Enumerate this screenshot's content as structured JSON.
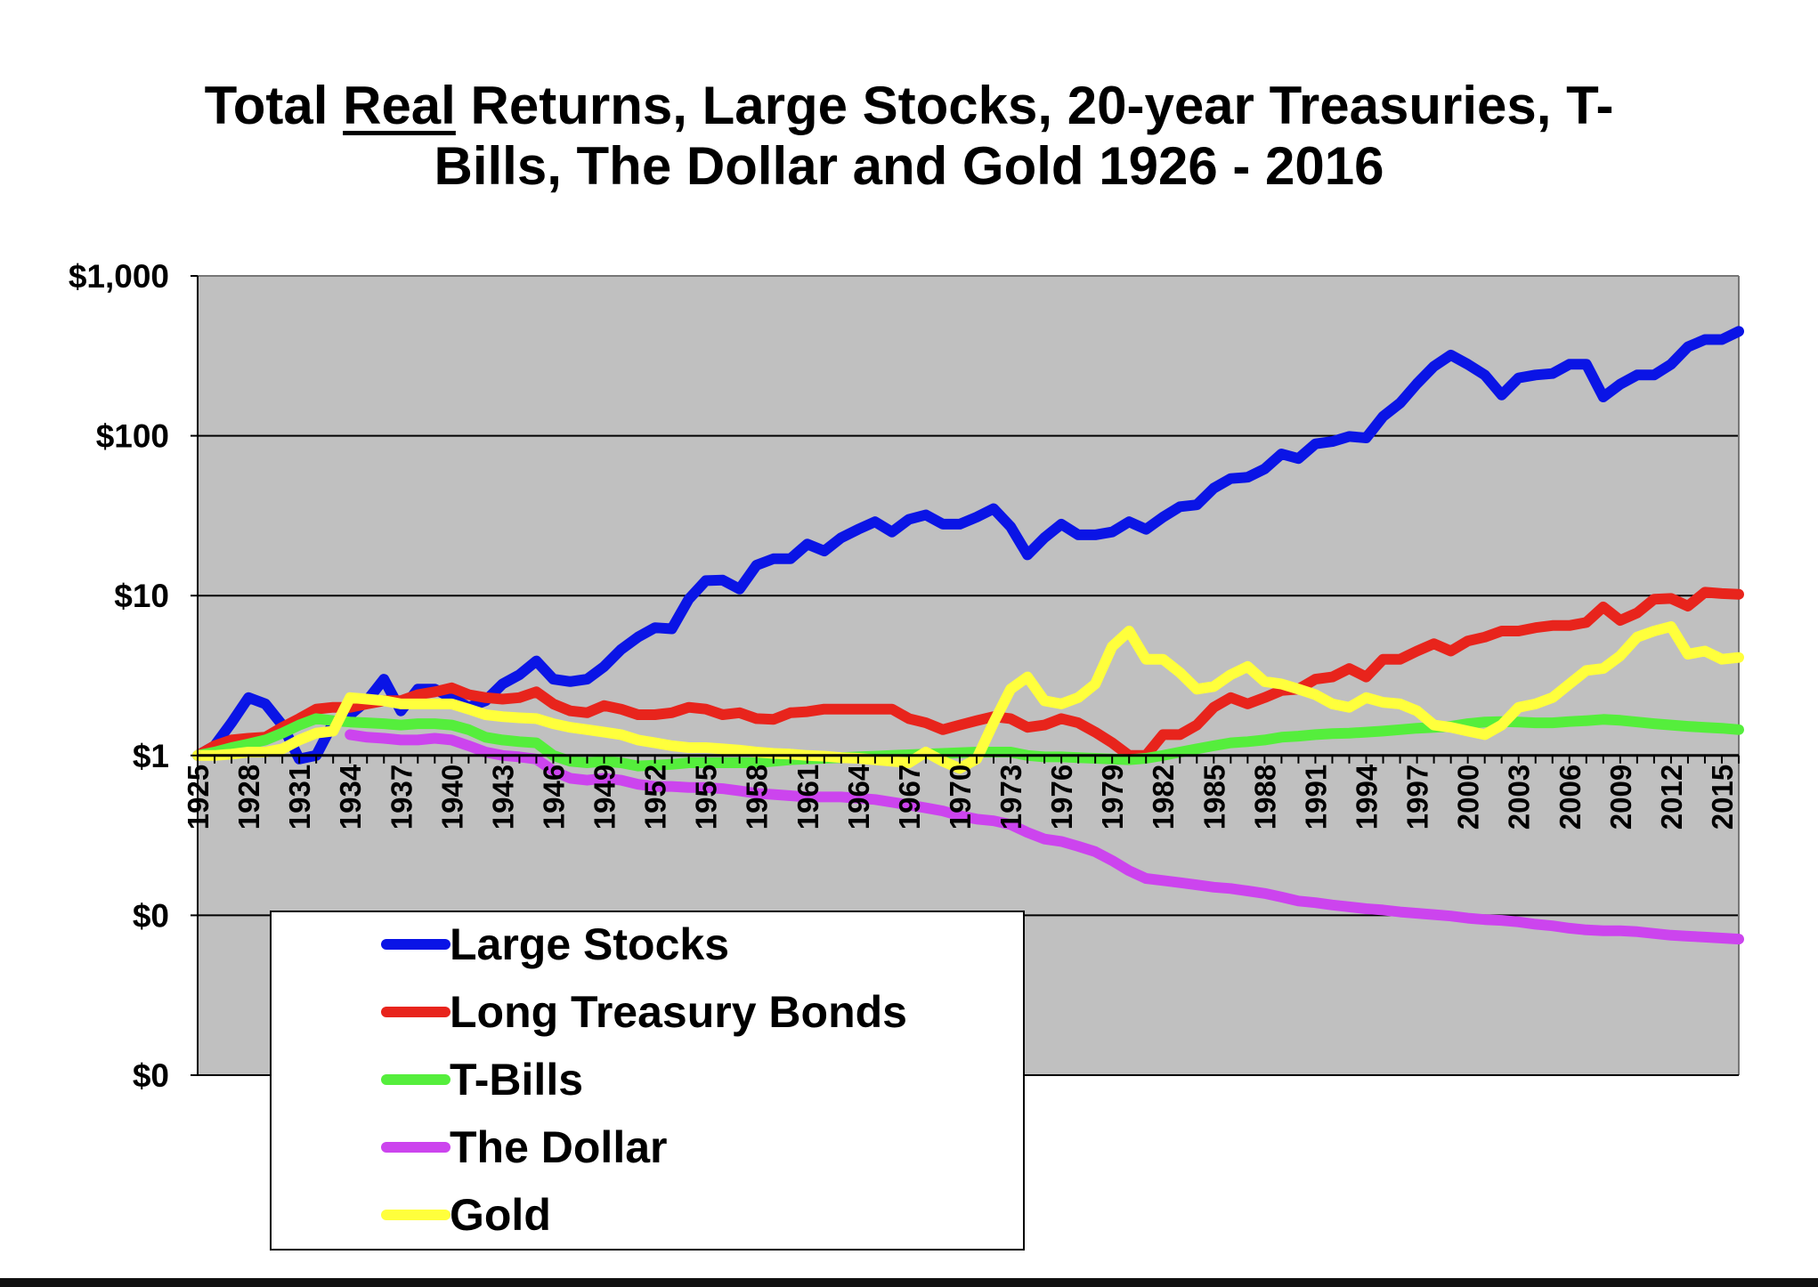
{
  "chart_data": {
    "type": "line",
    "title_parts": [
      "Total ",
      "Real",
      " Returns, Large Stocks, 20-year Treasuries, T-",
      "Bills, The Dollar and Gold 1926 - 2016"
    ],
    "y_scale": "log",
    "ylim": [
      0.01,
      1000
    ],
    "y_ticks": [
      1000,
      100,
      10,
      1,
      0.1,
      0.01
    ],
    "y_tick_labels": [
      "$1,000",
      "$100",
      "$10",
      "$1",
      "$0",
      "$0"
    ],
    "xlim": [
      1925,
      2016
    ],
    "x_tick_labels": [
      "1925",
      "1928",
      "1931",
      "1934",
      "1937",
      "1940",
      "1943",
      "1946",
      "1949",
      "1952",
      "1955",
      "1958",
      "1961",
      "1964",
      "1967",
      "1970",
      "1973",
      "1976",
      "1979",
      "1982",
      "1985",
      "1988",
      "1991",
      "1994",
      "1997",
      "2000",
      "2003",
      "2006",
      "2009",
      "2012",
      "2015"
    ],
    "grid": true,
    "plot_background": "#c0c0c0",
    "legend_position": "lower-left",
    "series": [
      {
        "name": "Large Stocks",
        "color": "#0a14e6",
        "x": [
          1925,
          1926,
          1927,
          1928,
          1929,
          1930,
          1931,
          1932,
          1933,
          1934,
          1935,
          1936,
          1937,
          1938,
          1939,
          1940,
          1941,
          1942,
          1943,
          1944,
          1945,
          1946,
          1947,
          1948,
          1949,
          1950,
          1951,
          1952,
          1953,
          1954,
          1955,
          1956,
          1957,
          1958,
          1959,
          1960,
          1961,
          1962,
          1963,
          1964,
          1965,
          1966,
          1967,
          1968,
          1969,
          1970,
          1971,
          1972,
          1973,
          1974,
          1975,
          1976,
          1977,
          1978,
          1979,
          1980,
          1981,
          1982,
          1983,
          1984,
          1985,
          1986,
          1987,
          1988,
          1989,
          1990,
          1991,
          1992,
          1993,
          1994,
          1995,
          1996,
          1997,
          1998,
          1999,
          2000,
          2001,
          2002,
          2003,
          2004,
          2005,
          2006,
          2007,
          2008,
          2009,
          2010,
          2011,
          2012,
          2013,
          2014,
          2015,
          2016
        ],
        "y": [
          1.0,
          1.15,
          1.6,
          2.3,
          2.1,
          1.55,
          0.95,
          1.0,
          1.6,
          1.8,
          2.2,
          3.0,
          1.9,
          2.6,
          2.6,
          2.3,
          2.0,
          2.2,
          2.8,
          3.2,
          3.9,
          3.0,
          2.9,
          3.0,
          3.6,
          4.6,
          5.5,
          6.3,
          6.2,
          9.5,
          12.4,
          12.5,
          11.0,
          15.5,
          17.0,
          17.0,
          21.0,
          19.0,
          23.0,
          26.0,
          29.0,
          25.0,
          30.0,
          32.0,
          28.0,
          28.0,
          31.0,
          35.0,
          27.0,
          18.0,
          23.0,
          28.0,
          24.0,
          24.0,
          25.0,
          29.0,
          26.0,
          31.0,
          36.0,
          37.0,
          47.0,
          54.0,
          55.0,
          62.0,
          77.0,
          72.0,
          89.0,
          92.0,
          99.0,
          97.0,
          132.0,
          160.0,
          212.0,
          272.0,
          320.0,
          280.0,
          240.0,
          180.0,
          230.0,
          240.0,
          245.0,
          280.0,
          280.0,
          175.0,
          210.0,
          240.0,
          240.0,
          280.0,
          360.0,
          400.0,
          400.0,
          450.0
        ]
      },
      {
        "name": "Long Treasury Bonds",
        "color": "#e8241c",
        "x": [
          1925,
          1926,
          1927,
          1928,
          1929,
          1930,
          1931,
          1932,
          1933,
          1934,
          1935,
          1936,
          1937,
          1938,
          1939,
          1940,
          1941,
          1942,
          1943,
          1944,
          1945,
          1946,
          1947,
          1948,
          1949,
          1950,
          1951,
          1952,
          1953,
          1954,
          1955,
          1956,
          1957,
          1958,
          1959,
          1960,
          1961,
          1962,
          1963,
          1964,
          1965,
          1966,
          1967,
          1968,
          1969,
          1970,
          1971,
          1972,
          1973,
          1974,
          1975,
          1976,
          1977,
          1978,
          1979,
          1980,
          1981,
          1982,
          1983,
          1984,
          1985,
          1986,
          1987,
          1988,
          1989,
          1990,
          1991,
          1992,
          1993,
          1994,
          1995,
          1996,
          1997,
          1998,
          1999,
          2000,
          2001,
          2002,
          2003,
          2004,
          2005,
          2006,
          2007,
          2008,
          2009,
          2010,
          2011,
          2012,
          2013,
          2014,
          2015,
          2016
        ],
        "y": [
          1.0,
          1.15,
          1.25,
          1.28,
          1.3,
          1.5,
          1.7,
          1.95,
          2.0,
          2.0,
          2.1,
          2.2,
          2.2,
          2.4,
          2.5,
          2.65,
          2.4,
          2.3,
          2.25,
          2.3,
          2.5,
          2.1,
          1.9,
          1.85,
          2.05,
          1.95,
          1.8,
          1.8,
          1.85,
          2.0,
          1.95,
          1.8,
          1.85,
          1.7,
          1.68,
          1.85,
          1.88,
          1.95,
          1.95,
          1.95,
          1.95,
          1.95,
          1.7,
          1.6,
          1.45,
          1.55,
          1.65,
          1.75,
          1.7,
          1.5,
          1.55,
          1.7,
          1.6,
          1.4,
          1.2,
          1.0,
          1.0,
          1.35,
          1.35,
          1.55,
          2.0,
          2.3,
          2.1,
          2.3,
          2.55,
          2.6,
          3.0,
          3.1,
          3.5,
          3.1,
          4.0,
          4.0,
          4.5,
          5.0,
          4.5,
          5.2,
          5.5,
          6.0,
          6.0,
          6.3,
          6.5,
          6.5,
          6.8,
          8.5,
          7.0,
          7.8,
          9.5,
          9.6,
          8.6,
          10.5,
          10.3,
          10.2
        ]
      },
      {
        "name": "T-Bills",
        "color": "#55ee3c",
        "x": [
          1925,
          1926,
          1927,
          1928,
          1929,
          1930,
          1931,
          1932,
          1933,
          1934,
          1935,
          1936,
          1937,
          1938,
          1939,
          1940,
          1941,
          1942,
          1943,
          1944,
          1945,
          1946,
          1947,
          1948,
          1949,
          1950,
          1951,
          1952,
          1953,
          1954,
          1955,
          1956,
          1957,
          1958,
          1959,
          1960,
          1961,
          1962,
          1963,
          1964,
          1965,
          1966,
          1967,
          1968,
          1969,
          1970,
          1971,
          1972,
          1973,
          1974,
          1975,
          1976,
          1977,
          1978,
          1979,
          1980,
          1981,
          1982,
          1983,
          1984,
          1985,
          1986,
          1987,
          1988,
          1989,
          1990,
          1991,
          1992,
          1993,
          1994,
          1995,
          1996,
          1997,
          1998,
          1999,
          2000,
          2001,
          2002,
          2003,
          2004,
          2005,
          2006,
          2007,
          2008,
          2009,
          2010,
          2011,
          2012,
          2013,
          2014,
          2015,
          2016
        ],
        "y": [
          1.0,
          1.05,
          1.12,
          1.18,
          1.25,
          1.38,
          1.55,
          1.7,
          1.65,
          1.62,
          1.6,
          1.58,
          1.55,
          1.58,
          1.58,
          1.55,
          1.45,
          1.3,
          1.25,
          1.22,
          1.2,
          1.0,
          0.92,
          0.9,
          0.92,
          0.9,
          0.86,
          0.87,
          0.88,
          0.9,
          0.9,
          0.9,
          0.9,
          0.9,
          0.92,
          0.94,
          0.95,
          0.96,
          0.97,
          0.98,
          0.99,
          1.0,
          1.01,
          1.02,
          1.03,
          1.04,
          1.05,
          1.05,
          1.05,
          1.0,
          0.98,
          0.98,
          0.97,
          0.96,
          0.95,
          0.94,
          0.96,
          1.0,
          1.05,
          1.1,
          1.15,
          1.2,
          1.22,
          1.25,
          1.3,
          1.32,
          1.35,
          1.37,
          1.38,
          1.4,
          1.42,
          1.45,
          1.48,
          1.5,
          1.52,
          1.58,
          1.62,
          1.63,
          1.62,
          1.6,
          1.6,
          1.63,
          1.65,
          1.68,
          1.66,
          1.62,
          1.58,
          1.55,
          1.52,
          1.5,
          1.48,
          1.45
        ]
      },
      {
        "name": "The Dollar",
        "color": "#cc44ee",
        "x": [
          1934,
          1935,
          1936,
          1937,
          1938,
          1939,
          1940,
          1941,
          1942,
          1943,
          1944,
          1945,
          1946,
          1947,
          1948,
          1949,
          1950,
          1951,
          1952,
          1953,
          1954,
          1955,
          1956,
          1957,
          1958,
          1959,
          1960,
          1961,
          1962,
          1963,
          1964,
          1965,
          1966,
          1967,
          1968,
          1969,
          1970,
          1971,
          1972,
          1973,
          1974,
          1975,
          1976,
          1977,
          1978,
          1979,
          1980,
          1981,
          1982,
          1983,
          1984,
          1985,
          1986,
          1987,
          1988,
          1989,
          1990,
          1991,
          1992,
          1993,
          1994,
          1995,
          1996,
          1997,
          1998,
          1999,
          2000,
          2001,
          2002,
          2003,
          2004,
          2005,
          2006,
          2007,
          2008,
          2009,
          2010,
          2011,
          2012,
          2013,
          2014,
          2015,
          2016
        ],
        "y": [
          1.35,
          1.3,
          1.28,
          1.25,
          1.25,
          1.28,
          1.25,
          1.15,
          1.05,
          1.0,
          0.98,
          0.95,
          0.8,
          0.72,
          0.7,
          0.72,
          0.7,
          0.66,
          0.64,
          0.64,
          0.63,
          0.63,
          0.62,
          0.6,
          0.58,
          0.57,
          0.56,
          0.55,
          0.55,
          0.55,
          0.54,
          0.53,
          0.51,
          0.49,
          0.47,
          0.45,
          0.42,
          0.4,
          0.39,
          0.37,
          0.33,
          0.3,
          0.29,
          0.27,
          0.25,
          0.22,
          0.19,
          0.17,
          0.165,
          0.16,
          0.155,
          0.15,
          0.147,
          0.142,
          0.137,
          0.13,
          0.123,
          0.12,
          0.116,
          0.113,
          0.11,
          0.108,
          0.105,
          0.103,
          0.101,
          0.099,
          0.096,
          0.094,
          0.093,
          0.091,
          0.088,
          0.086,
          0.083,
          0.081,
          0.08,
          0.08,
          0.079,
          0.077,
          0.075,
          0.074,
          0.073,
          0.072,
          0.071
        ]
      },
      {
        "name": "Gold",
        "color": "#ffff3c",
        "x": [
          1925,
          1926,
          1927,
          1928,
          1929,
          1930,
          1931,
          1932,
          1933,
          1934,
          1935,
          1936,
          1937,
          1938,
          1939,
          1940,
          1941,
          1942,
          1943,
          1944,
          1945,
          1946,
          1947,
          1948,
          1949,
          1950,
          1951,
          1952,
          1953,
          1954,
          1955,
          1956,
          1957,
          1958,
          1959,
          1960,
          1961,
          1962,
          1963,
          1964,
          1965,
          1966,
          1967,
          1968,
          1969,
          1970,
          1971,
          1972,
          1973,
          1974,
          1975,
          1976,
          1977,
          1978,
          1979,
          1980,
          1981,
          1982,
          1983,
          1984,
          1985,
          1986,
          1987,
          1988,
          1989,
          1990,
          1991,
          1992,
          1993,
          1994,
          1995,
          1996,
          1997,
          1998,
          1999,
          2000,
          2001,
          2002,
          2003,
          2004,
          2005,
          2006,
          2007,
          2008,
          2009,
          2010,
          2011,
          2012,
          2013,
          2014,
          2015,
          2016
        ],
        "y": [
          1.0,
          1.0,
          1.02,
          1.05,
          1.05,
          1.1,
          1.25,
          1.38,
          1.42,
          2.3,
          2.25,
          2.2,
          2.1,
          2.1,
          2.1,
          2.1,
          1.95,
          1.8,
          1.75,
          1.72,
          1.7,
          1.58,
          1.5,
          1.45,
          1.4,
          1.35,
          1.25,
          1.2,
          1.15,
          1.12,
          1.12,
          1.1,
          1.08,
          1.05,
          1.03,
          1.02,
          1.0,
          0.99,
          0.97,
          0.96,
          0.94,
          0.92,
          0.9,
          1.05,
          0.92,
          0.83,
          0.95,
          1.6,
          2.6,
          3.1,
          2.2,
          2.1,
          2.3,
          2.8,
          4.8,
          6.0,
          4.0,
          4.0,
          3.3,
          2.6,
          2.7,
          3.2,
          3.6,
          2.9,
          2.8,
          2.6,
          2.4,
          2.1,
          2.0,
          2.3,
          2.15,
          2.1,
          1.9,
          1.55,
          1.5,
          1.42,
          1.35,
          1.55,
          2.0,
          2.1,
          2.3,
          2.8,
          3.4,
          3.5,
          4.2,
          5.5,
          6.0,
          6.4,
          4.3,
          4.5,
          4.0,
          4.1
        ]
      }
    ]
  }
}
